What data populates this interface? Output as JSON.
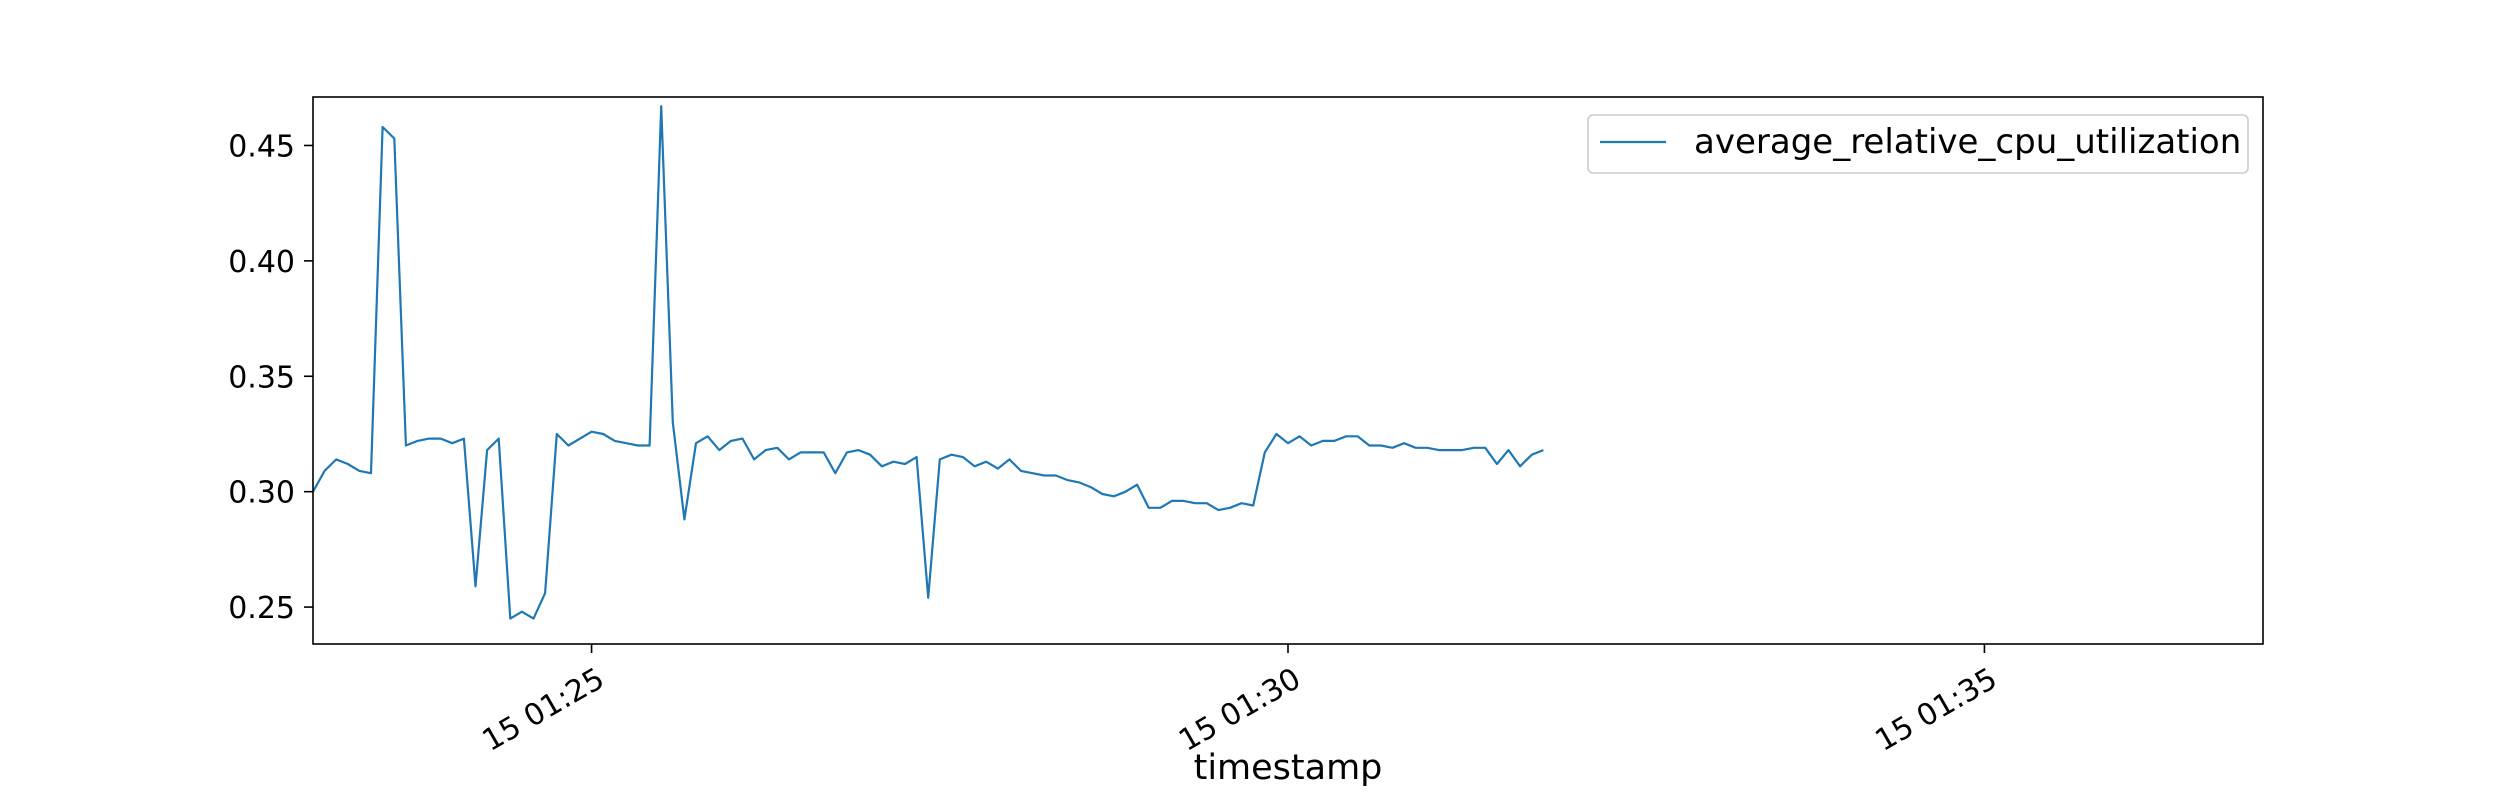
{
  "chart_data": {
    "type": "line",
    "title": "",
    "xlabel": "timestamp",
    "ylabel": "",
    "x_start": "15 01:23:00",
    "x_step_seconds": 5,
    "xlim": [
      "15 01:23:00",
      "15 01:37:00"
    ],
    "ylim": [
      0.234,
      0.471
    ],
    "x_ticks": [
      "15 01:25",
      "15 01:30",
      "15 01:35"
    ],
    "y_ticks": [
      "0.25",
      "0.30",
      "0.35",
      "0.40",
      "0.45"
    ],
    "grid": false,
    "legend_position": "top-right",
    "series": [
      {
        "name": "average_relative_cpu_utilization",
        "color": "#1f77b4",
        "values": [
          0.3,
          0.309,
          0.314,
          0.312,
          0.309,
          0.308,
          0.458,
          0.453,
          0.32,
          0.322,
          0.323,
          0.323,
          0.321,
          0.323,
          0.259,
          0.318,
          0.323,
          0.245,
          0.248,
          0.245,
          0.256,
          0.325,
          0.32,
          0.323,
          0.326,
          0.325,
          0.322,
          0.321,
          0.32,
          0.32,
          0.467,
          0.33,
          0.288,
          0.321,
          0.324,
          0.318,
          0.322,
          0.323,
          0.314,
          0.318,
          0.319,
          0.314,
          0.317,
          0.317,
          0.317,
          0.308,
          0.317,
          0.318,
          0.316,
          0.311,
          0.313,
          0.312,
          0.315,
          0.254,
          0.314,
          0.316,
          0.315,
          0.311,
          0.313,
          0.31,
          0.314,
          0.309,
          0.308,
          0.307,
          0.307,
          0.305,
          0.304,
          0.302,
          0.299,
          0.298,
          0.3,
          0.303,
          0.293,
          0.293,
          0.296,
          0.296,
          0.295,
          0.295,
          0.292,
          0.293,
          0.295,
          0.294,
          0.317,
          0.325,
          0.321,
          0.324,
          0.32,
          0.322,
          0.322,
          0.324,
          0.324,
          0.32,
          0.32,
          0.319,
          0.321,
          0.319,
          0.319,
          0.318,
          0.318,
          0.318,
          0.319,
          0.319,
          0.312,
          0.318,
          0.311,
          0.316,
          0.318
        ]
      }
    ]
  }
}
